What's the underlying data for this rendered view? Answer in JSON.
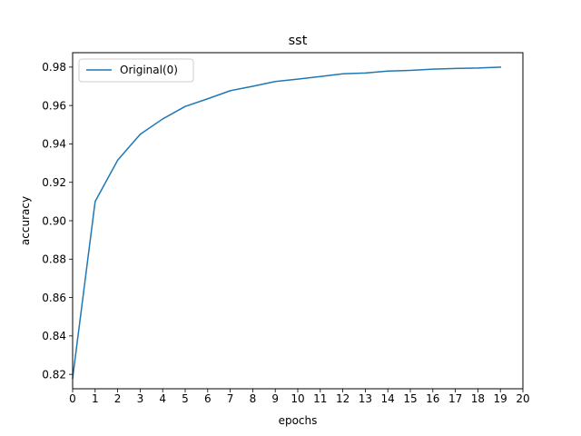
{
  "chart_data": {
    "type": "line",
    "title": "sst",
    "xlabel": "epochs",
    "ylabel": "accuracy",
    "xlim": [
      0,
      20
    ],
    "ylim": [
      0.8125,
      0.9875
    ],
    "x_ticks": [
      0,
      1,
      2,
      3,
      4,
      5,
      6,
      7,
      8,
      9,
      10,
      11,
      12,
      13,
      14,
      15,
      16,
      17,
      18,
      19,
      20
    ],
    "y_ticks": [
      0.82,
      0.84,
      0.86,
      0.88,
      0.9,
      0.92,
      0.94,
      0.96,
      0.98
    ],
    "y_tick_labels": [
      "0.82",
      "0.84",
      "0.86",
      "0.88",
      "0.90",
      "0.92",
      "0.94",
      "0.96",
      "0.98"
    ],
    "grid": false,
    "legend_position": "top-left",
    "series": [
      {
        "name": "Original(0)",
        "color": "#1f77b4",
        "x": [
          0,
          1,
          2,
          3,
          4,
          5,
          6,
          7,
          8,
          9,
          10,
          11,
          12,
          13,
          14,
          15,
          16,
          17,
          18,
          19
        ],
        "values": [
          0.818,
          0.91,
          0.9315,
          0.945,
          0.953,
          0.9595,
          0.9635,
          0.9677,
          0.97,
          0.9725,
          0.9737,
          0.9751,
          0.9765,
          0.9769,
          0.9779,
          0.9783,
          0.9789,
          0.9793,
          0.9795,
          0.98
        ]
      }
    ]
  }
}
